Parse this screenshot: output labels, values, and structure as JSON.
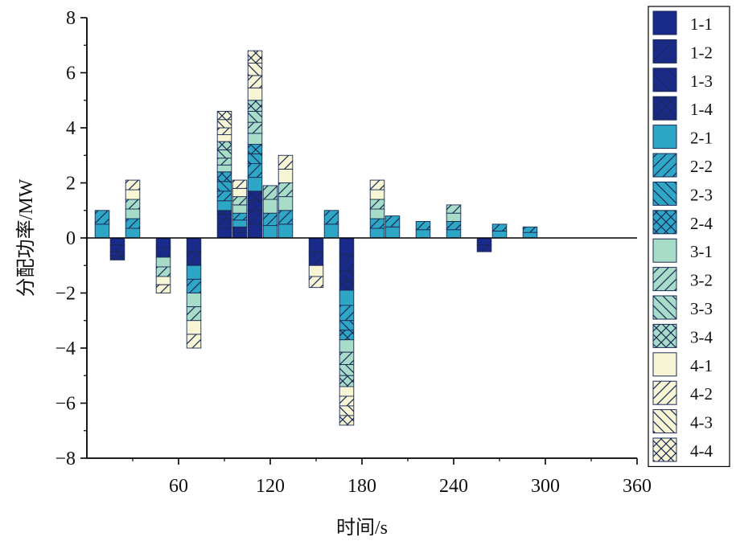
{
  "chart_data": {
    "type": "bar",
    "stacked": true,
    "xlabel": "时间/s",
    "ylabel": "分配功率/MW",
    "xlim": [
      0,
      360
    ],
    "ylim": [
      -8,
      8
    ],
    "xticks": [
      60,
      120,
      180,
      240,
      300,
      360
    ],
    "xtick_labels": [
      "60",
      "120",
      "180",
      "240",
      "300",
      "360"
    ],
    "yticks": [
      -8,
      -6,
      -4,
      -2,
      0,
      2,
      4,
      6,
      8
    ],
    "ytick_labels": [
      "−8",
      "−6",
      "−4",
      "−2",
      "0",
      "2",
      "4",
      "6",
      "8"
    ],
    "grid": false,
    "legend_position": "right, outside plot",
    "x": [
      10,
      20,
      30,
      50,
      70,
      90,
      100,
      110,
      120,
      130,
      150,
      160,
      170,
      190,
      200,
      220,
      240,
      260,
      270,
      290
    ],
    "series": [
      {
        "name": "1-1",
        "color": "#1a2a8a",
        "pattern": "solid",
        "values": [
          0,
          -0.25,
          0,
          -0.35,
          -0.5,
          0.35,
          0.2,
          0.5,
          0,
          0,
          -0.5,
          0,
          -0.6,
          0,
          0,
          0,
          0,
          -0.25,
          0,
          0
        ]
      },
      {
        "name": "1-2",
        "color": "#1a2a8a",
        "pattern": "diag",
        "values": [
          0,
          -0.25,
          0,
          -0.35,
          -0.5,
          0.35,
          0.2,
          0.5,
          0,
          0,
          -0.5,
          0,
          -0.6,
          0,
          0,
          0,
          0,
          -0.25,
          0,
          0
        ]
      },
      {
        "name": "1-3",
        "color": "#1a2a8a",
        "pattern": "backdiag",
        "values": [
          0,
          -0.15,
          0,
          0,
          0,
          0.15,
          0,
          0.35,
          0,
          0,
          0,
          0,
          -0.35,
          0,
          0,
          0,
          0,
          0,
          0,
          0
        ]
      },
      {
        "name": "1-4",
        "color": "#1a2a8a",
        "pattern": "cross",
        "values": [
          0,
          -0.15,
          0,
          0,
          0,
          0.15,
          0,
          0.35,
          0,
          0,
          0,
          0,
          -0.35,
          0,
          0,
          0,
          0,
          0,
          0,
          0
        ]
      },
      {
        "name": "2-1",
        "color": "#2ea6c6",
        "pattern": "solid",
        "values": [
          0.5,
          0,
          0.35,
          0,
          -0.5,
          0.35,
          0.25,
          0.5,
          0.45,
          0.5,
          0,
          0.5,
          -0.55,
          0.35,
          0.4,
          0.3,
          0.3,
          0,
          0.25,
          0.2
        ]
      },
      {
        "name": "2-2",
        "color": "#2ea6c6",
        "pattern": "diag",
        "values": [
          0.5,
          0,
          0.35,
          0,
          -0.5,
          0.35,
          0.25,
          0.5,
          0.45,
          0.5,
          0,
          0.5,
          -0.55,
          0.35,
          0.4,
          0.3,
          0.3,
          0,
          0.25,
          0.2
        ]
      },
      {
        "name": "2-3",
        "color": "#2ea6c6",
        "pattern": "backdiag",
        "values": [
          0,
          0,
          0,
          0,
          0,
          0.35,
          0,
          0.35,
          0,
          0,
          0,
          0,
          -0.35,
          0,
          0,
          0,
          0,
          0,
          0,
          0
        ]
      },
      {
        "name": "2-4",
        "color": "#2ea6c6",
        "pattern": "cross",
        "values": [
          0,
          0,
          0,
          0,
          0,
          0.35,
          0,
          0.35,
          0,
          0,
          0,
          0,
          -0.35,
          0,
          0,
          0,
          0,
          0,
          0,
          0
        ]
      },
      {
        "name": "3-1",
        "color": "#a7dcc8",
        "pattern": "solid",
        "values": [
          0,
          0,
          0.35,
          -0.35,
          -0.5,
          0.25,
          0.3,
          0.4,
          0.5,
          0.5,
          0,
          0,
          -0.45,
          0.35,
          0,
          0,
          0.3,
          0,
          0,
          0
        ]
      },
      {
        "name": "3-2",
        "color": "#a7dcc8",
        "pattern": "diag",
        "values": [
          0,
          0,
          0.35,
          -0.35,
          -0.5,
          0.25,
          0.3,
          0.4,
          0.5,
          0.5,
          0,
          0,
          -0.45,
          0.35,
          0,
          0,
          0.3,
          0,
          0,
          0
        ]
      },
      {
        "name": "3-3",
        "color": "#a7dcc8",
        "pattern": "backdiag",
        "values": [
          0,
          0,
          0,
          0,
          0,
          0.3,
          0,
          0.4,
          0,
          0,
          0,
          0,
          -0.4,
          0,
          0,
          0,
          0,
          0,
          0,
          0
        ]
      },
      {
        "name": "3-4",
        "color": "#a7dcc8",
        "pattern": "cross",
        "values": [
          0,
          0,
          0,
          0,
          0,
          0.3,
          0,
          0.4,
          0,
          0,
          0,
          0,
          -0.4,
          0,
          0,
          0,
          0,
          0,
          0,
          0
        ]
      },
      {
        "name": "4-1",
        "color": "#f8f5d4",
        "pattern": "solid",
        "values": [
          0,
          0,
          0.35,
          -0.3,
          -0.5,
          0.25,
          0.3,
          0.45,
          0,
          0.5,
          -0.4,
          0,
          -0.35,
          0.35,
          0,
          0,
          0,
          0,
          0,
          0
        ]
      },
      {
        "name": "4-2",
        "color": "#f8f5d4",
        "pattern": "diag",
        "values": [
          0,
          0,
          0.35,
          -0.3,
          -0.5,
          0.25,
          0.3,
          0.45,
          0,
          0.5,
          -0.4,
          0,
          -0.35,
          0.35,
          0,
          0,
          0,
          0,
          0,
          0
        ]
      },
      {
        "name": "4-3",
        "color": "#f8f5d4",
        "pattern": "backdiag",
        "values": [
          0,
          0,
          0,
          0,
          0,
          0.3,
          0,
          0.45,
          0,
          0,
          0,
          0,
          -0.35,
          0,
          0,
          0,
          0,
          0,
          0,
          0
        ]
      },
      {
        "name": "4-4",
        "color": "#f8f5d4",
        "pattern": "cross",
        "values": [
          0,
          0,
          0,
          0,
          0,
          0.3,
          0,
          0.45,
          0,
          0,
          0,
          0,
          -0.35,
          0,
          0,
          0,
          0,
          0,
          0,
          0
        ]
      }
    ]
  }
}
